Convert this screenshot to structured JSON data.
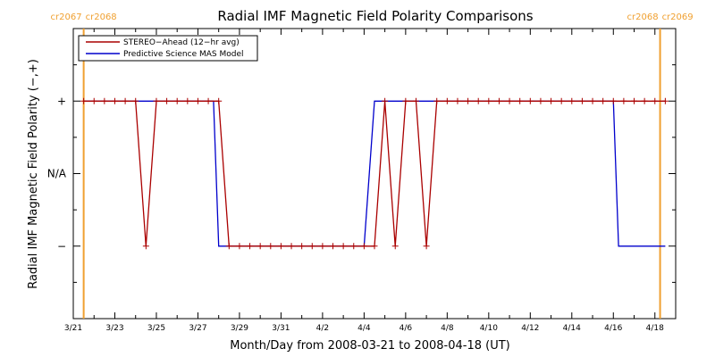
{
  "chart_data": {
    "type": "line",
    "title": "Radial IMF Magnetic Field Polarity Comparisons",
    "xlabel": "Month/Day from 2008-03-21 to 2008-04-18 (UT)",
    "ylabel": "Radial IMF Magnetic Field Polarity (−,+)",
    "xlim": [
      "2008-03-21",
      "2008-04-19"
    ],
    "ylim": [
      -2,
      2
    ],
    "x_ticks": [
      {
        "value": "2008-03-21",
        "label": "3/21"
      },
      {
        "value": "2008-03-23",
        "label": "3/23"
      },
      {
        "value": "2008-03-25",
        "label": "3/25"
      },
      {
        "value": "2008-03-27",
        "label": "3/27"
      },
      {
        "value": "2008-03-29",
        "label": "3/29"
      },
      {
        "value": "2008-03-31",
        "label": "3/31"
      },
      {
        "value": "2008-04-02",
        "label": "4/2"
      },
      {
        "value": "2008-04-04",
        "label": "4/4"
      },
      {
        "value": "2008-04-06",
        "label": "4/6"
      },
      {
        "value": "2008-04-08",
        "label": "4/8"
      },
      {
        "value": "2008-04-10",
        "label": "4/10"
      },
      {
        "value": "2008-04-12",
        "label": "4/12"
      },
      {
        "value": "2008-04-14",
        "label": "4/14"
      },
      {
        "value": "2008-04-16",
        "label": "4/16"
      },
      {
        "value": "2008-04-18",
        "label": "4/18"
      }
    ],
    "y_ticks": [
      {
        "value": 1,
        "label": "+"
      },
      {
        "value": 0,
        "label": "N/A"
      },
      {
        "value": -1,
        "label": "−"
      }
    ],
    "carrington_markers": [
      {
        "date": "2008-03-21 12:00",
        "labels": [
          "cr2067",
          "cr2068"
        ]
      },
      {
        "date": "2008-04-18 06:00",
        "labels": [
          "cr2068",
          "cr2069"
        ]
      }
    ],
    "series": [
      {
        "name": "STEREO−Ahead (12−hr avg)",
        "color": "#aa0000",
        "marker": "plus",
        "x": [
          "2008-03-21 12:00",
          "2008-03-22 00:00",
          "2008-03-22 12:00",
          "2008-03-23 00:00",
          "2008-03-23 12:00",
          "2008-03-24 00:00",
          "2008-03-24 12:00",
          "2008-03-25 00:00",
          "2008-03-25 12:00",
          "2008-03-26 00:00",
          "2008-03-26 12:00",
          "2008-03-27 00:00",
          "2008-03-27 12:00",
          "2008-03-28 00:00",
          "2008-03-28 12:00",
          "2008-03-29 00:00",
          "2008-03-29 12:00",
          "2008-03-30 00:00",
          "2008-03-30 12:00",
          "2008-03-31 00:00",
          "2008-03-31 12:00",
          "2008-04-01 00:00",
          "2008-04-01 12:00",
          "2008-04-02 00:00",
          "2008-04-02 12:00",
          "2008-04-03 00:00",
          "2008-04-03 12:00",
          "2008-04-04 00:00",
          "2008-04-04 12:00",
          "2008-04-05 00:00",
          "2008-04-05 12:00",
          "2008-04-06 00:00",
          "2008-04-06 12:00",
          "2008-04-07 00:00",
          "2008-04-07 12:00",
          "2008-04-08 00:00",
          "2008-04-08 12:00",
          "2008-04-09 00:00",
          "2008-04-09 12:00",
          "2008-04-10 00:00",
          "2008-04-10 12:00",
          "2008-04-11 00:00",
          "2008-04-11 12:00",
          "2008-04-12 00:00",
          "2008-04-12 12:00",
          "2008-04-13 00:00",
          "2008-04-13 12:00",
          "2008-04-14 00:00",
          "2008-04-14 12:00",
          "2008-04-15 00:00",
          "2008-04-15 12:00",
          "2008-04-16 00:00",
          "2008-04-16 12:00",
          "2008-04-17 00:00",
          "2008-04-17 12:00",
          "2008-04-18 00:00",
          "2008-04-18 12:00"
        ],
        "values": [
          1,
          1,
          1,
          1,
          1,
          1,
          -1,
          1,
          1,
          1,
          1,
          1,
          1,
          1,
          -1,
          -1,
          -1,
          -1,
          -1,
          -1,
          -1,
          -1,
          -1,
          -1,
          -1,
          -1,
          -1,
          -1,
          -1,
          1,
          -1,
          1,
          1,
          -1,
          1,
          1,
          1,
          1,
          1,
          1,
          1,
          1,
          1,
          1,
          1,
          1,
          1,
          1,
          1,
          1,
          1,
          1,
          1,
          1,
          1,
          1,
          1
        ]
      },
      {
        "name": "Predictive Science MAS Model",
        "color": "#0000cc",
        "marker": "none",
        "x": [
          "2008-03-21 12:00",
          "2008-03-27 18:00",
          "2008-03-28 00:00",
          "2008-04-04 00:00",
          "2008-04-04 12:00",
          "2008-04-16 00:00",
          "2008-04-16 06:00",
          "2008-04-18 12:00"
        ],
        "values": [
          1,
          1,
          -1,
          -1,
          1,
          1,
          -1,
          -1
        ]
      }
    ],
    "legend": {
      "position": "top-left"
    },
    "grid": false
  }
}
